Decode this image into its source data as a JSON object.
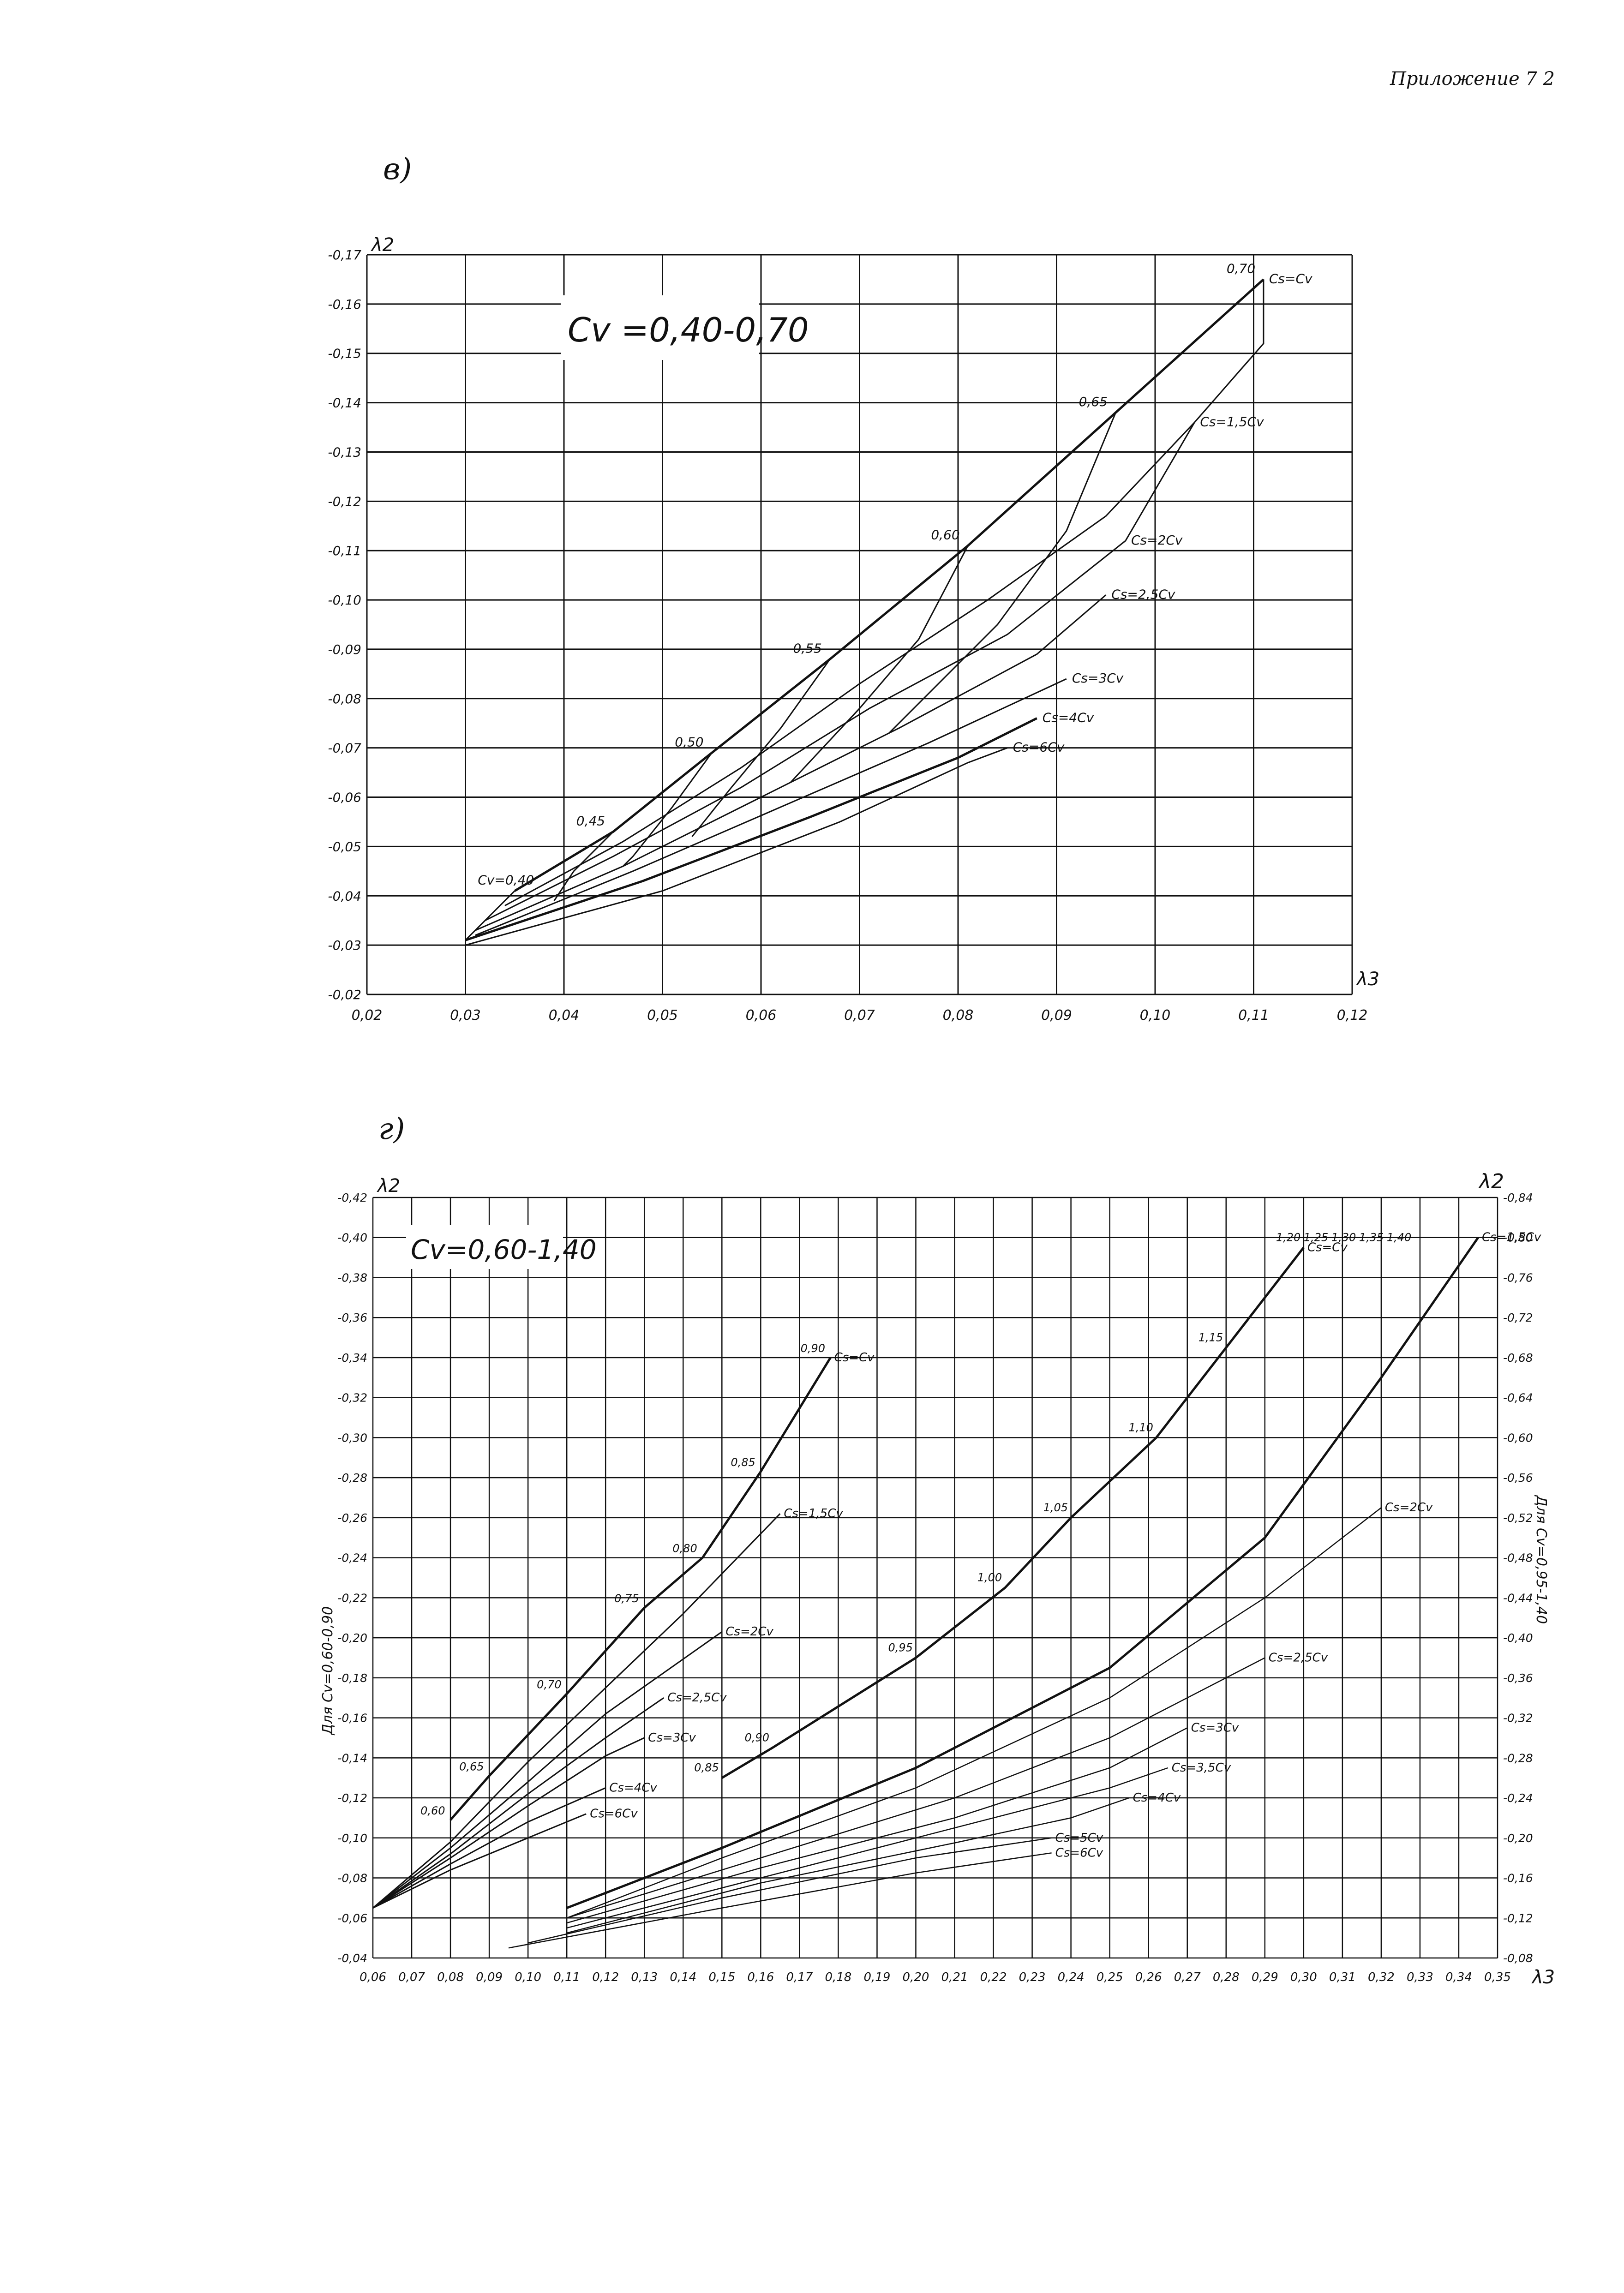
{
  "header": {
    "appendix": "Приложение 7 2"
  },
  "chart_data": [
    {
      "type": "line",
      "panel_label": "в)",
      "title": "Cv =0,40-0,70",
      "xlabel": "λ3",
      "ylabel": "λ2",
      "xlim": [
        0.02,
        0.12
      ],
      "ylim": [
        -0.02,
        -0.17
      ],
      "x_ticks": [
        "0,02",
        "0,03",
        "0,04",
        "0,05",
        "0,06",
        "0,07",
        "0,08",
        "0,09",
        "0,10",
        "0,11",
        "0,12"
      ],
      "y_ticks": [
        "-0,17",
        "-0,16",
        "-0,15",
        "-0,14",
        "-0,13",
        "-0,12",
        "-0,11",
        "-0,10",
        "-0,09",
        "-0,08",
        "-0,07",
        "-0,06",
        "-0,05",
        "-0,04",
        "-0,03",
        "-0,02"
      ],
      "grid": true,
      "series": [
        {
          "name": "Cs=Cv",
          "points": [
            [
              0.035,
              -0.041
            ],
            [
              0.045,
              -0.053
            ],
            [
              0.055,
              -0.069
            ],
            [
              0.067,
              -0.088
            ],
            [
              0.081,
              -0.111
            ],
            [
              0.096,
              -0.138
            ],
            [
              0.111,
              -0.165
            ]
          ]
        },
        {
          "name": "Cs=1,5Cv",
          "points": [
            [
              0.034,
              -0.038
            ],
            [
              0.046,
              -0.051
            ],
            [
              0.058,
              -0.066
            ],
            [
              0.07,
              -0.083
            ],
            [
              0.083,
              -0.1
            ],
            [
              0.095,
              -0.117
            ],
            [
              0.104,
              -0.136
            ]
          ]
        },
        {
          "name": "Cs=2Cv",
          "points": [
            [
              0.032,
              -0.035
            ],
            [
              0.045,
              -0.048
            ],
            [
              0.058,
              -0.062
            ],
            [
              0.071,
              -0.078
            ],
            [
              0.085,
              -0.093
            ],
            [
              0.097,
              -0.112
            ]
          ]
        },
        {
          "name": "Cs=2,5Cv",
          "points": [
            [
              0.031,
              -0.033
            ],
            [
              0.046,
              -0.046
            ],
            [
              0.06,
              -0.06
            ],
            [
              0.074,
              -0.074
            ],
            [
              0.088,
              -0.089
            ],
            [
              0.095,
              -0.101
            ]
          ]
        },
        {
          "name": "Cs=3Cv",
          "points": [
            [
              0.031,
              -0.032
            ],
            [
              0.047,
              -0.045
            ],
            [
              0.062,
              -0.058
            ],
            [
              0.077,
              -0.071
            ],
            [
              0.091,
              -0.084
            ]
          ]
        },
        {
          "name": "Cs=4Cv",
          "points": [
            [
              0.03,
              -0.031
            ],
            [
              0.048,
              -0.043
            ],
            [
              0.065,
              -0.056
            ],
            [
              0.08,
              -0.068
            ],
            [
              0.088,
              -0.076
            ]
          ]
        },
        {
          "name": "Cs=6Cv",
          "points": [
            [
              0.03,
              -0.03
            ],
            [
              0.05,
              -0.041
            ],
            [
              0.068,
              -0.055
            ],
            [
              0.081,
              -0.067
            ],
            [
              0.085,
              -0.07
            ]
          ]
        }
      ],
      "cv_isolines": [
        {
          "label": "0,40",
          "points": [
            [
              0.035,
              -0.041
            ],
            [
              0.03,
              -0.031
            ]
          ]
        },
        {
          "label": "0,45",
          "points": [
            [
              0.045,
              -0.053
            ],
            [
              0.041,
              -0.045
            ],
            [
              0.039,
              -0.039
            ]
          ]
        },
        {
          "label": "0,50",
          "points": [
            [
              0.055,
              -0.069
            ],
            [
              0.051,
              -0.058
            ],
            [
              0.047,
              -0.048
            ],
            [
              0.046,
              -0.046
            ]
          ]
        },
        {
          "label": "0,55",
          "points": [
            [
              0.067,
              -0.088
            ],
            [
              0.062,
              -0.074
            ],
            [
              0.057,
              -0.062
            ],
            [
              0.053,
              -0.052
            ]
          ]
        },
        {
          "label": "0,60",
          "points": [
            [
              0.081,
              -0.111
            ],
            [
              0.076,
              -0.092
            ],
            [
              0.07,
              -0.078
            ],
            [
              0.063,
              -0.063
            ]
          ]
        },
        {
          "label": "0,65",
          "points": [
            [
              0.096,
              -0.138
            ],
            [
              0.091,
              -0.114
            ],
            [
              0.084,
              -0.095
            ],
            [
              0.073,
              -0.073
            ]
          ]
        },
        {
          "label": "0,70",
          "points": [
            [
              0.111,
              -0.165
            ],
            [
              0.111,
              -0.152
            ],
            [
              0.104,
              -0.136
            ],
            [
              0.097,
              -0.112
            ]
          ]
        }
      ],
      "curve_labels": [
        "Cs=Cv",
        "Cs=1,5Cv",
        "Cs=2Cv",
        "Cs=2,5Cv",
        "Cs=3Cv",
        "Cs=4Cv",
        "Cs=6Cv"
      ],
      "cv_labels_prefix": "Cv="
    },
    {
      "type": "line",
      "panel_label": "г)",
      "title": "Cv=0,60-1,40",
      "xlabel": "λ3",
      "ylabel": "λ2",
      "left_axis_caption": "Для Cv=0,60-0,90",
      "right_axis_caption": "Для Cv=0,95-1,40",
      "xlim": [
        0.06,
        0.35
      ],
      "ylim_left": [
        -0.04,
        -0.42
      ],
      "ylim_right": [
        -0.08,
        -0.84
      ],
      "x_ticks": [
        "0,06",
        "0,07",
        "0,08",
        "0,09",
        "0,10",
        "0,11",
        "0,12",
        "0,13",
        "0,14",
        "0,15",
        "0,16",
        "0,17",
        "0,18",
        "0,19",
        "0,20",
        "0,21",
        "0,22",
        "0,23",
        "0,24",
        "0,25",
        "0,26",
        "0,27",
        "0,28",
        "0,29",
        "0,30",
        "0,31",
        "0,32",
        "0,33",
        "0,34",
        "0,35"
      ],
      "y_ticks_left": [
        "-0,42",
        "-0,40",
        "-0,38",
        "-0,36",
        "-0,34",
        "-0,32",
        "-0,30",
        "-0,28",
        "-0,26",
        "-0,24",
        "-0,22",
        "-0,20",
        "-0,18",
        "-0,16",
        "-0,14",
        "-0,12",
        "-0,10",
        "-0,08",
        "-0,06",
        "-0,04"
      ],
      "y_ticks_right": [
        "-0,84",
        "-0,80",
        "-0,76",
        "-0,72",
        "-0,68",
        "-0,64",
        "-0,60",
        "-0,56",
        "-0,52",
        "-0,48",
        "-0,44",
        "-0,40",
        "-0,36",
        "-0,32",
        "-0,28",
        "-0,24",
        "-0,20",
        "-0,16",
        "-0,12",
        "-0,08"
      ],
      "grid": true,
      "series_left": [
        {
          "name": "Cs=Cv",
          "points": [
            [
              0.08,
              -0.109
            ],
            [
              0.09,
              -0.131
            ],
            [
              0.11,
              -0.172
            ],
            [
              0.13,
              -0.215
            ],
            [
              0.145,
              -0.24
            ],
            [
              0.16,
              -0.283
            ],
            [
              0.178,
              -0.34
            ]
          ]
        },
        {
          "name": "Cs=1,5Cv",
          "points": [
            [
              0.06,
              -0.065
            ],
            [
              0.08,
              -0.098
            ],
            [
              0.1,
              -0.138
            ],
            [
              0.12,
              -0.175
            ],
            [
              0.14,
              -0.212
            ],
            [
              0.165,
              -0.262
            ]
          ]
        },
        {
          "name": "Cs=2Cv",
          "points": [
            [
              0.06,
              -0.065
            ],
            [
              0.08,
              -0.095
            ],
            [
              0.1,
              -0.128
            ],
            [
              0.12,
              -0.162
            ],
            [
              0.15,
              -0.203
            ]
          ]
        },
        {
          "name": "Cs=2,5Cv",
          "points": [
            [
              0.06,
              -0.065
            ],
            [
              0.08,
              -0.092
            ],
            [
              0.1,
              -0.122
            ],
            [
              0.12,
              -0.15
            ],
            [
              0.135,
              -0.17
            ]
          ]
        },
        {
          "name": "Cs=3Cv",
          "points": [
            [
              0.06,
              -0.065
            ],
            [
              0.08,
              -0.09
            ],
            [
              0.1,
              -0.116
            ],
            [
              0.12,
              -0.141
            ],
            [
              0.13,
              -0.15
            ]
          ]
        },
        {
          "name": "Cs=4Cv",
          "points": [
            [
              0.06,
              -0.065
            ],
            [
              0.08,
              -0.087
            ],
            [
              0.1,
              -0.108
            ],
            [
              0.12,
              -0.125
            ]
          ]
        },
        {
          "name": "Cs=6Cv",
          "points": [
            [
              0.06,
              -0.065
            ],
            [
              0.08,
              -0.084
            ],
            [
              0.1,
              -0.1
            ],
            [
              0.115,
              -0.112
            ]
          ]
        }
      ],
      "series_right": [
        {
          "name": "Cs=Cv",
          "points": [
            [
              0.15,
              -0.26
            ],
            [
              0.163,
              -0.29
            ],
            [
              0.2,
              -0.38
            ],
            [
              0.223,
              -0.45
            ],
            [
              0.24,
              -0.52
            ],
            [
              0.262,
              -0.6
            ],
            [
              0.28,
              -0.69
            ],
            [
              0.3,
              -0.79
            ]
          ]
        },
        {
          "name": "Cs=1,5Cv",
          "points": [
            [
              0.11,
              -0.13
            ],
            [
              0.15,
              -0.19
            ],
            [
              0.2,
              -0.27
            ],
            [
              0.25,
              -0.37
            ],
            [
              0.29,
              -0.5
            ],
            [
              0.32,
              -0.66
            ],
            [
              0.345,
              -0.8
            ]
          ]
        },
        {
          "name": "Cs=2Cv",
          "points": [
            [
              0.11,
              -0.12
            ],
            [
              0.15,
              -0.18
            ],
            [
              0.2,
              -0.25
            ],
            [
              0.25,
              -0.34
            ],
            [
              0.29,
              -0.44
            ],
            [
              0.32,
              -0.53
            ]
          ]
        },
        {
          "name": "Cs=2,5Cv",
          "points": [
            [
              0.11,
              -0.12
            ],
            [
              0.16,
              -0.18
            ],
            [
              0.21,
              -0.24
            ],
            [
              0.25,
              -0.3
            ],
            [
              0.29,
              -0.38
            ]
          ]
        },
        {
          "name": "Cs=3Cv",
          "points": [
            [
              0.11,
              -0.115
            ],
            [
              0.16,
              -0.17
            ],
            [
              0.21,
              -0.22
            ],
            [
              0.25,
              -0.27
            ],
            [
              0.27,
              -0.31
            ]
          ]
        },
        {
          "name": "Cs=3,5Cv",
          "points": [
            [
              0.11,
              -0.11
            ],
            [
              0.16,
              -0.16
            ],
            [
              0.21,
              -0.21
            ],
            [
              0.25,
              -0.25
            ],
            [
              0.265,
              -0.27
            ]
          ]
        },
        {
          "name": "Cs=4Cv",
          "points": [
            [
              0.11,
              -0.105
            ],
            [
              0.16,
              -0.155
            ],
            [
              0.21,
              -0.195
            ],
            [
              0.24,
              -0.22
            ],
            [
              0.255,
              -0.24
            ]
          ]
        },
        {
          "name": "Cs=5Cv",
          "points": [
            [
              0.1,
              -0.095
            ],
            [
              0.15,
              -0.14
            ],
            [
              0.2,
              -0.18
            ],
            [
              0.235,
              -0.2
            ]
          ]
        },
        {
          "name": "Cs=6Cv",
          "points": [
            [
              0.095,
              -0.09
            ],
            [
              0.15,
              -0.13
            ],
            [
              0.2,
              -0.165
            ],
            [
              0.235,
              -0.185
            ]
          ]
        }
      ],
      "cv_labels_left": [
        "0,60",
        "0,65",
        "0,70",
        "0,75",
        "0,80",
        "0,85",
        "0,90"
      ],
      "cv_labels_right": [
        "0,85",
        "0,90",
        "0,95",
        "1,00",
        "1,05",
        "1,10",
        "1,15",
        "1,20",
        "1,25",
        "1,30",
        "1,35",
        "1,40"
      ],
      "curve_labels_left": [
        "Cs=Cv",
        "Cs=1,5Cv",
        "Cs=2Cv",
        "Cs=2,5Cv",
        "Cs=3Cv",
        "Cs=4Cv",
        "Cs=6Cv"
      ],
      "curve_labels_right": [
        "Cs=Cv",
        "Cs=1,5Cv",
        "Cs=2Cv",
        "Cs=2,5Cv",
        "Cs=3Cv",
        "Cs=3,5Cv",
        "Cs=4Cv",
        "Cs=5Cv",
        "Cs=6Cv"
      ]
    }
  ]
}
